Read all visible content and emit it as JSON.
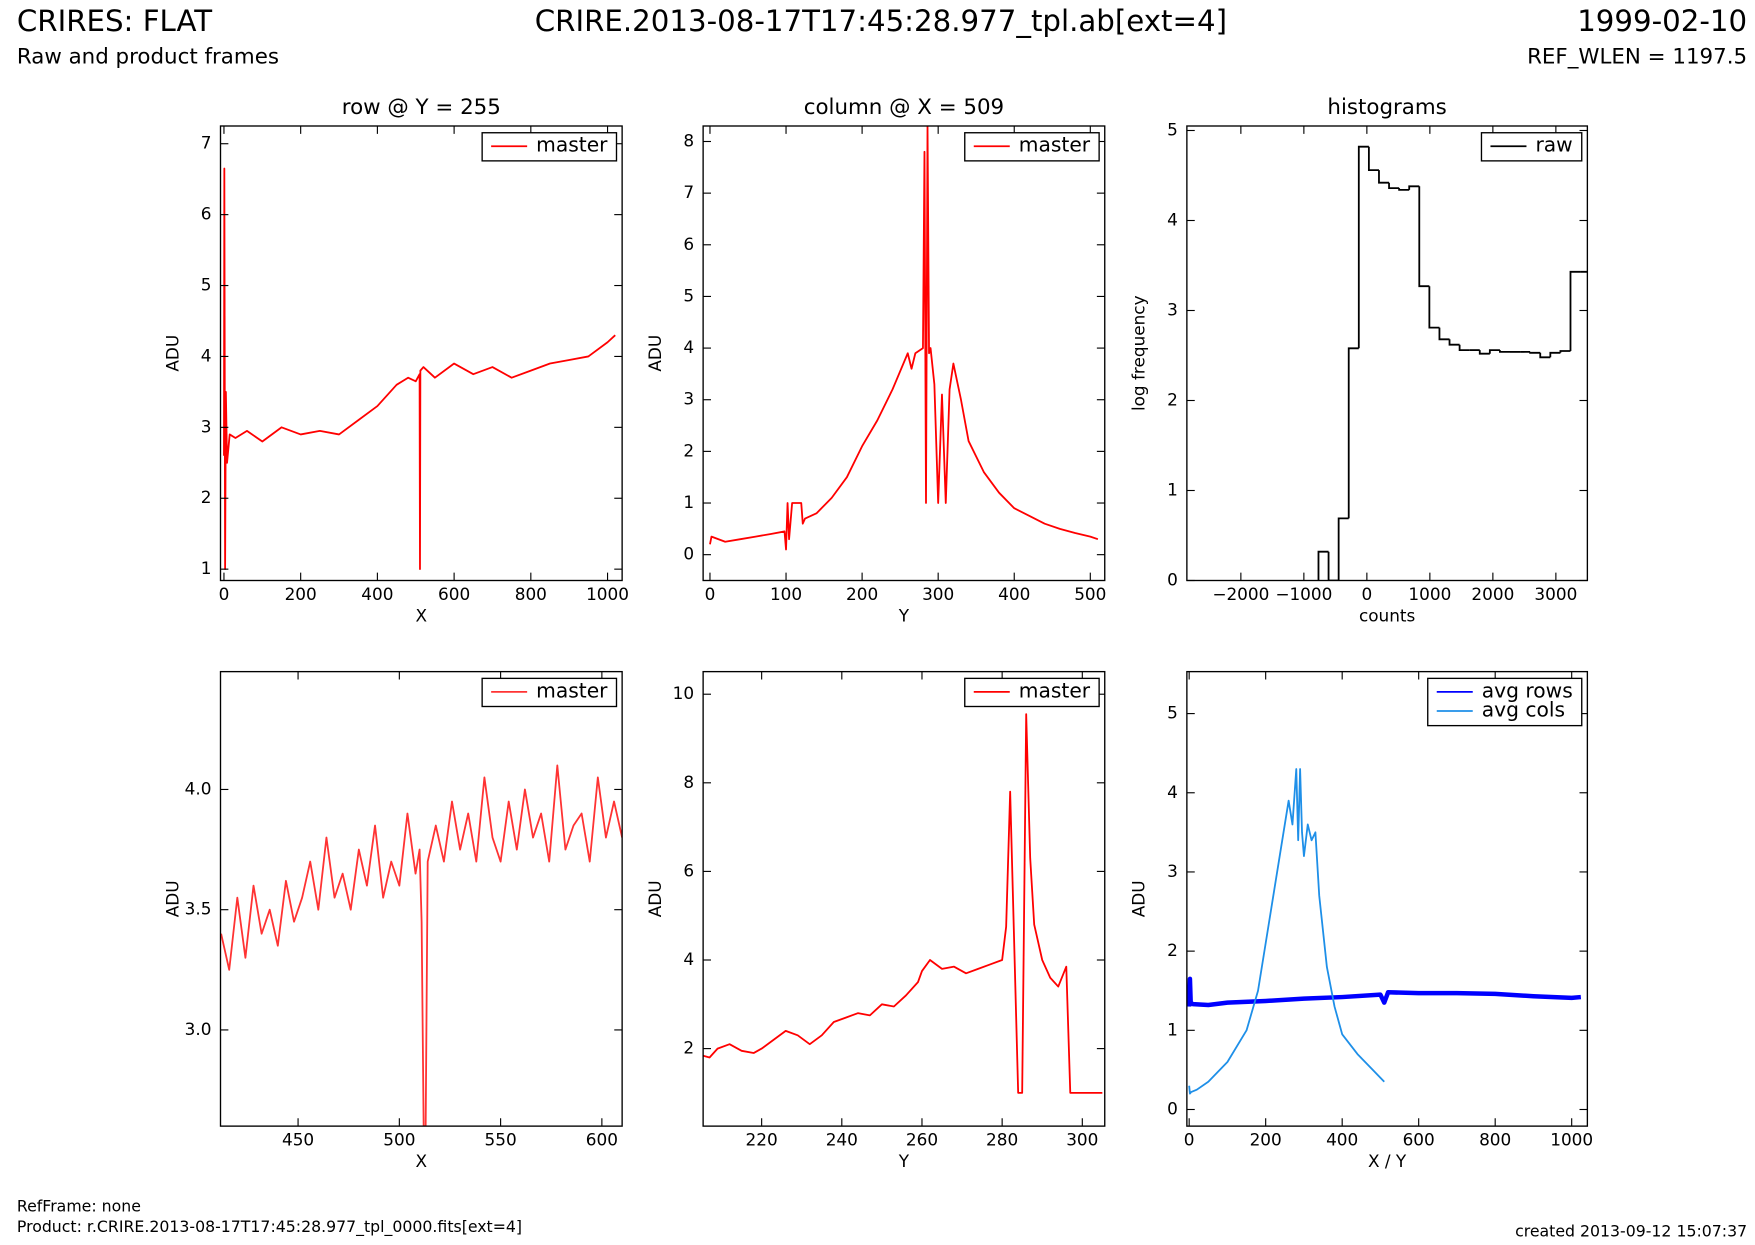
{
  "header": {
    "title": "CRIRES: FLAT",
    "subtitle": "Raw and product frames",
    "file": "CRIRE.2013-08-17T17:45:28.977_tpl.ab[ext=4]",
    "date": "1999-02-10",
    "ref_wlen": "REF_WLEN = 1197.5"
  },
  "footer": {
    "refframe": "RefFrame: none",
    "product": "Product: r.CRIRE.2013-08-17T17:45:28.977_tpl_0000.fits[ext=4]",
    "created": "created 2013-09-12 15:07:37"
  },
  "chart_data": [
    {
      "type": "line",
      "title": "row @ Y = 255",
      "xlabel": "X",
      "ylabel": "ADU",
      "legend": "upper right",
      "xlim": [
        -9,
        1038
      ],
      "ylim": [
        0.84,
        7.25
      ],
      "xticks": [
        0,
        200,
        400,
        600,
        800,
        1000
      ],
      "yticks": [
        1,
        2,
        3,
        4,
        5,
        6,
        7
      ],
      "series": [
        {
          "name": "master",
          "color": "#ff0000",
          "x": [
            0,
            1,
            3,
            5,
            8,
            15,
            30,
            60,
            100,
            150,
            200,
            250,
            300,
            350,
            400,
            450,
            480,
            500,
            510,
            511,
            512,
            520,
            550,
            600,
            650,
            700,
            750,
            800,
            850,
            900,
            950,
            1000,
            1020
          ],
          "values": [
            2.6,
            6.65,
            1.0,
            3.5,
            2.5,
            2.9,
            2.85,
            2.95,
            2.8,
            3.0,
            2.9,
            2.95,
            2.9,
            3.1,
            3.3,
            3.6,
            3.7,
            3.65,
            3.75,
            1.0,
            3.8,
            3.85,
            3.7,
            3.9,
            3.75,
            3.85,
            3.7,
            3.8,
            3.9,
            3.95,
            4.0,
            4.2,
            4.3
          ]
        }
      ]
    },
    {
      "type": "line",
      "title": "column @ X = 509",
      "xlabel": "Y",
      "ylabel": "ADU",
      "legend": "upper right",
      "xlim": [
        -9,
        519
      ],
      "ylim": [
        -0.5,
        8.3
      ],
      "xticks": [
        0,
        100,
        200,
        300,
        400,
        500
      ],
      "yticks": [
        0,
        1,
        2,
        3,
        4,
        5,
        6,
        7,
        8
      ],
      "series": [
        {
          "name": "master",
          "color": "#ff0000",
          "x": [
            0,
            2,
            20,
            40,
            60,
            80,
            98,
            100,
            102,
            104,
            108,
            120,
            122,
            125,
            140,
            160,
            180,
            200,
            220,
            240,
            260,
            265,
            270,
            280,
            282,
            284,
            286,
            288,
            290,
            295,
            300,
            305,
            310,
            315,
            320,
            330,
            340,
            360,
            380,
            400,
            420,
            440,
            460,
            480,
            500,
            510
          ],
          "values": [
            0.2,
            0.35,
            0.25,
            0.3,
            0.35,
            0.4,
            0.45,
            0.1,
            1.0,
            0.3,
            1.0,
            1.0,
            0.6,
            0.7,
            0.8,
            1.1,
            1.5,
            2.1,
            2.6,
            3.2,
            3.9,
            3.6,
            3.9,
            4.0,
            7.8,
            1.0,
            8.3,
            3.9,
            4.0,
            3.3,
            1.0,
            3.1,
            1.0,
            3.2,
            3.7,
            3.0,
            2.2,
            1.6,
            1.2,
            0.9,
            0.75,
            0.6,
            0.5,
            0.42,
            0.35,
            0.3
          ]
        }
      ]
    },
    {
      "type": "histogram",
      "title": "histograms",
      "xlabel": "counts",
      "ylabel": "log frequency",
      "legend": "upper right",
      "xlim": [
        -2857,
        3500
      ],
      "ylim": [
        0,
        5.05
      ],
      "xticks": [
        {
          "value": -2000,
          "label": "−2000"
        },
        {
          "value": -1000,
          "label": "−1000"
        },
        0,
        1000,
        2000,
        3000
      ],
      "yticks": [
        0,
        1,
        2,
        3,
        4,
        5
      ],
      "bins": [
        -768,
        -608,
        -448,
        -288,
        -128,
        32,
        192,
        352,
        512,
        672,
        832,
        992,
        1152,
        1312,
        1472,
        1632,
        1792,
        1952,
        2112,
        2272,
        2432,
        2592,
        2752,
        2912,
        3072,
        3232,
        3392,
        3552
      ],
      "series": [
        {
          "name": "raw",
          "color": "#000000",
          "values": [
            0.32,
            0,
            0.69,
            2.58,
            4.82,
            4.56,
            4.42,
            4.36,
            4.34,
            4.38,
            3.27,
            2.81,
            2.68,
            2.62,
            2.56,
            2.56,
            2.52,
            2.56,
            2.54,
            2.54,
            2.54,
            2.53,
            2.48,
            2.53,
            2.55,
            3.43,
            3.43
          ]
        }
      ]
    },
    {
      "type": "line",
      "xlabel": "X",
      "ylabel": "ADU",
      "legend": "upper right",
      "xlim": [
        411.7,
        610
      ],
      "ylim": [
        2.6,
        4.49
      ],
      "xticks": [
        450,
        500,
        550,
        600
      ],
      "yticks": [
        {
          "value": 3,
          "label": "3.0"
        },
        3.5,
        {
          "value": 4,
          "label": "4.0"
        }
      ],
      "series": [
        {
          "name": "master",
          "color": "#ff3333",
          "x": [
            412,
            416,
            420,
            424,
            428,
            432,
            436,
            440,
            444,
            448,
            452,
            456,
            460,
            464,
            468,
            472,
            476,
            480,
            484,
            488,
            492,
            496,
            500,
            504,
            508,
            510,
            511,
            512,
            513,
            514,
            518,
            522,
            526,
            530,
            534,
            538,
            542,
            546,
            550,
            554,
            558,
            562,
            566,
            570,
            574,
            578,
            582,
            586,
            590,
            594,
            598,
            602,
            606,
            610
          ],
          "values": [
            3.4,
            3.25,
            3.55,
            3.3,
            3.6,
            3.4,
            3.5,
            3.35,
            3.62,
            3.45,
            3.55,
            3.7,
            3.5,
            3.8,
            3.55,
            3.65,
            3.5,
            3.75,
            3.6,
            3.85,
            3.55,
            3.7,
            3.6,
            3.9,
            3.65,
            3.75,
            3.45,
            2.6,
            2.6,
            3.7,
            3.85,
            3.7,
            3.95,
            3.75,
            3.9,
            3.7,
            4.05,
            3.8,
            3.7,
            3.95,
            3.75,
            4.0,
            3.8,
            3.9,
            3.7,
            4.1,
            3.75,
            3.85,
            3.9,
            3.7,
            4.05,
            3.8,
            3.95,
            3.8
          ]
        }
      ]
    },
    {
      "type": "line",
      "xlabel": "Y",
      "ylabel": "ADU",
      "legend": "upper right",
      "xlim": [
        205.4,
        305.6
      ],
      "ylim": [
        0.25,
        10.51
      ],
      "xticks": [
        220,
        240,
        260,
        280,
        300
      ],
      "yticks": [
        2,
        4,
        6,
        8,
        10
      ],
      "series": [
        {
          "name": "master",
          "color": "#ff0000",
          "x": [
            205,
            207,
            209,
            212,
            215,
            218,
            220,
            223,
            226,
            229,
            232,
            235,
            238,
            241,
            244,
            247,
            250,
            253,
            256,
            259,
            260,
            262,
            265,
            268,
            271,
            274,
            277,
            280,
            281,
            282,
            284,
            285,
            286,
            287,
            288,
            290,
            292,
            294,
            296,
            297,
            298,
            300,
            305
          ],
          "values": [
            1.85,
            1.8,
            2.0,
            2.1,
            1.95,
            1.9,
            2.0,
            2.2,
            2.4,
            2.3,
            2.1,
            2.3,
            2.6,
            2.7,
            2.8,
            2.75,
            3.0,
            2.95,
            3.2,
            3.5,
            3.75,
            4.0,
            3.8,
            3.85,
            3.7,
            3.8,
            3.9,
            4.0,
            4.75,
            7.8,
            1.0,
            1.0,
            9.55,
            6.3,
            4.8,
            4.0,
            3.6,
            3.4,
            3.85,
            1.0,
            1.0,
            1.0,
            1.0
          ]
        }
      ]
    },
    {
      "type": "line",
      "xlabel": "X / Y",
      "ylabel": "ADU",
      "legend": "upper right",
      "xlim": [
        -6,
        1041
      ],
      "ylim": [
        -0.21,
        5.53
      ],
      "xticks": [
        0,
        200,
        400,
        600,
        800,
        1000
      ],
      "yticks": [
        0,
        1,
        2,
        3,
        4,
        5
      ],
      "series": [
        {
          "name": "avg rows",
          "color": "#0000ff",
          "width": 4,
          "x": [
            0,
            2,
            4,
            10,
            50,
            100,
            200,
            300,
            400,
            500,
            510,
            520,
            600,
            700,
            800,
            900,
            1000,
            1024
          ],
          "values": [
            1.3,
            1.65,
            1.35,
            1.33,
            1.32,
            1.35,
            1.37,
            1.4,
            1.42,
            1.45,
            1.35,
            1.48,
            1.47,
            1.47,
            1.46,
            1.43,
            1.41,
            1.42
          ]
        },
        {
          "name": "avg cols",
          "color": "#1e8fe8",
          "x": [
            0,
            2,
            5,
            20,
            50,
            100,
            150,
            180,
            200,
            220,
            240,
            260,
            270,
            280,
            285,
            290,
            295,
            300,
            310,
            320,
            330,
            340,
            360,
            380,
            400,
            440,
            480,
            510
          ],
          "values": [
            0.3,
            0.2,
            0.22,
            0.25,
            0.35,
            0.6,
            1.0,
            1.5,
            2.1,
            2.7,
            3.3,
            3.9,
            3.6,
            4.3,
            3.4,
            4.3,
            3.5,
            3.2,
            3.6,
            3.4,
            3.5,
            2.7,
            1.8,
            1.3,
            0.95,
            0.7,
            0.5,
            0.35
          ]
        }
      ]
    }
  ]
}
